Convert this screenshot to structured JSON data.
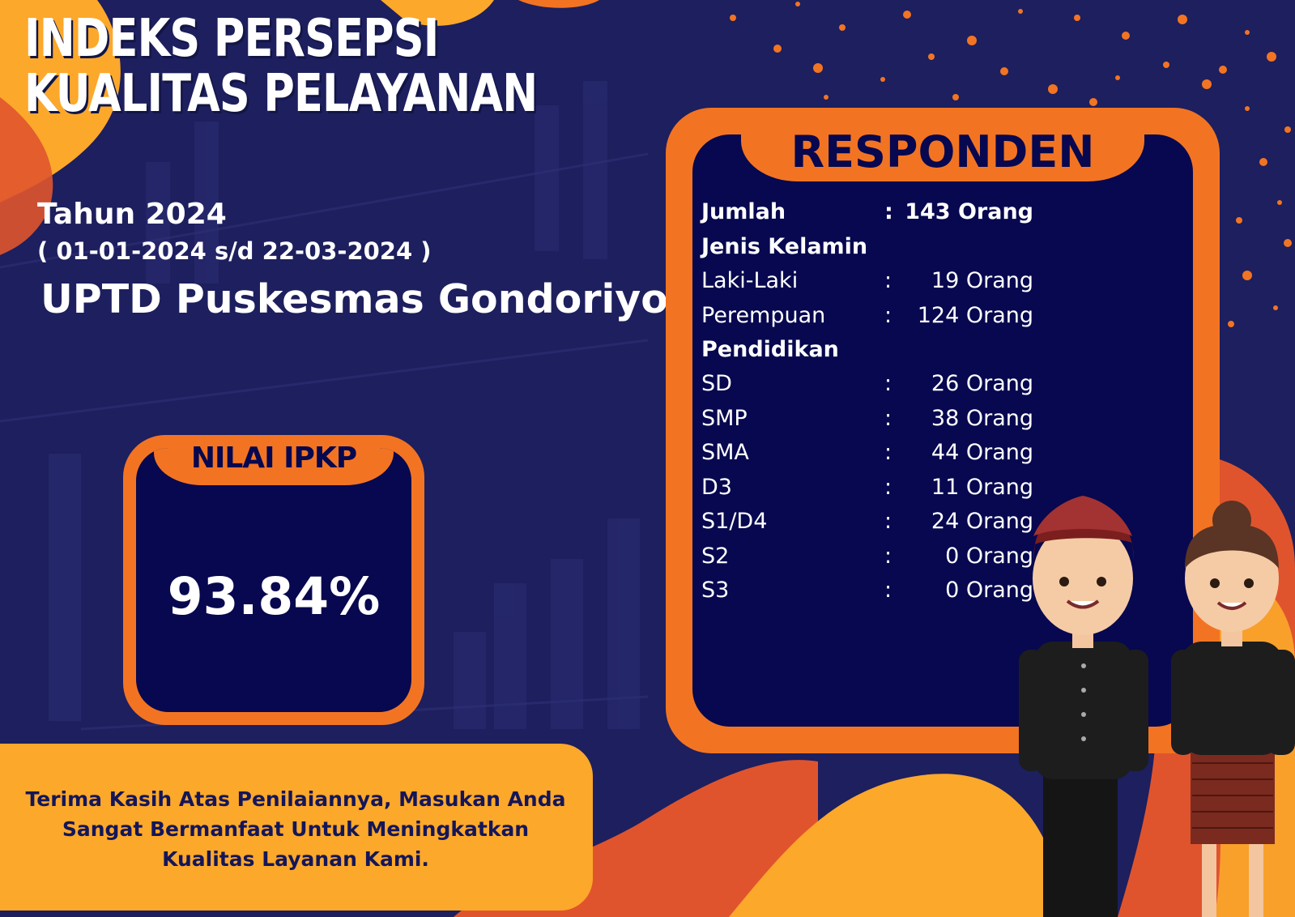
{
  "header": {
    "title_line1": "INDEKS PERSEPSI",
    "title_line2": "KUALITAS PELAYANAN"
  },
  "info": {
    "year": "Tahun 2024",
    "period": "( 01-01-2024 s/d 22-03-2024 )",
    "unit": "UPTD Puskesmas Gondoriyo"
  },
  "nilai": {
    "label": "NILAI IPKP",
    "value": "93.84%"
  },
  "responden": {
    "title": "RESPONDEN",
    "separator": ":",
    "total": {
      "label": "Jumlah",
      "value": "143 Orang"
    },
    "gender_heading": "Jenis Kelamin",
    "gender": [
      {
        "label": "Laki-Laki",
        "value": "19 Orang"
      },
      {
        "label": "Perempuan",
        "value": "124 Orang"
      }
    ],
    "education_heading": "Pendidikan",
    "education": [
      {
        "label": "SD",
        "value": "26 Orang"
      },
      {
        "label": "SMP",
        "value": "38 Orang"
      },
      {
        "label": "SMA",
        "value": "44 Orang"
      },
      {
        "label": "D3",
        "value": "11 Orang"
      },
      {
        "label": "S1/D4",
        "value": "24 Orang"
      },
      {
        "label": "S2",
        "value": "0 Orang"
      },
      {
        "label": "S3",
        "value": "0 Orang"
      }
    ]
  },
  "footer": {
    "line1": "Terima Kasih Atas Penilaiannya, Masukan Anda",
    "line2": "Sangat Bermanfaat Untuk Meningkatkan",
    "line3": "Kualitas Layanan Kami."
  },
  "colors": {
    "navy": "#07084f",
    "background": "#1d1f5e",
    "orange": "#f27423",
    "yellow": "#fca82b"
  },
  "illustration": {
    "icons": [
      "male-javanese-figure",
      "female-javanese-figure"
    ]
  }
}
